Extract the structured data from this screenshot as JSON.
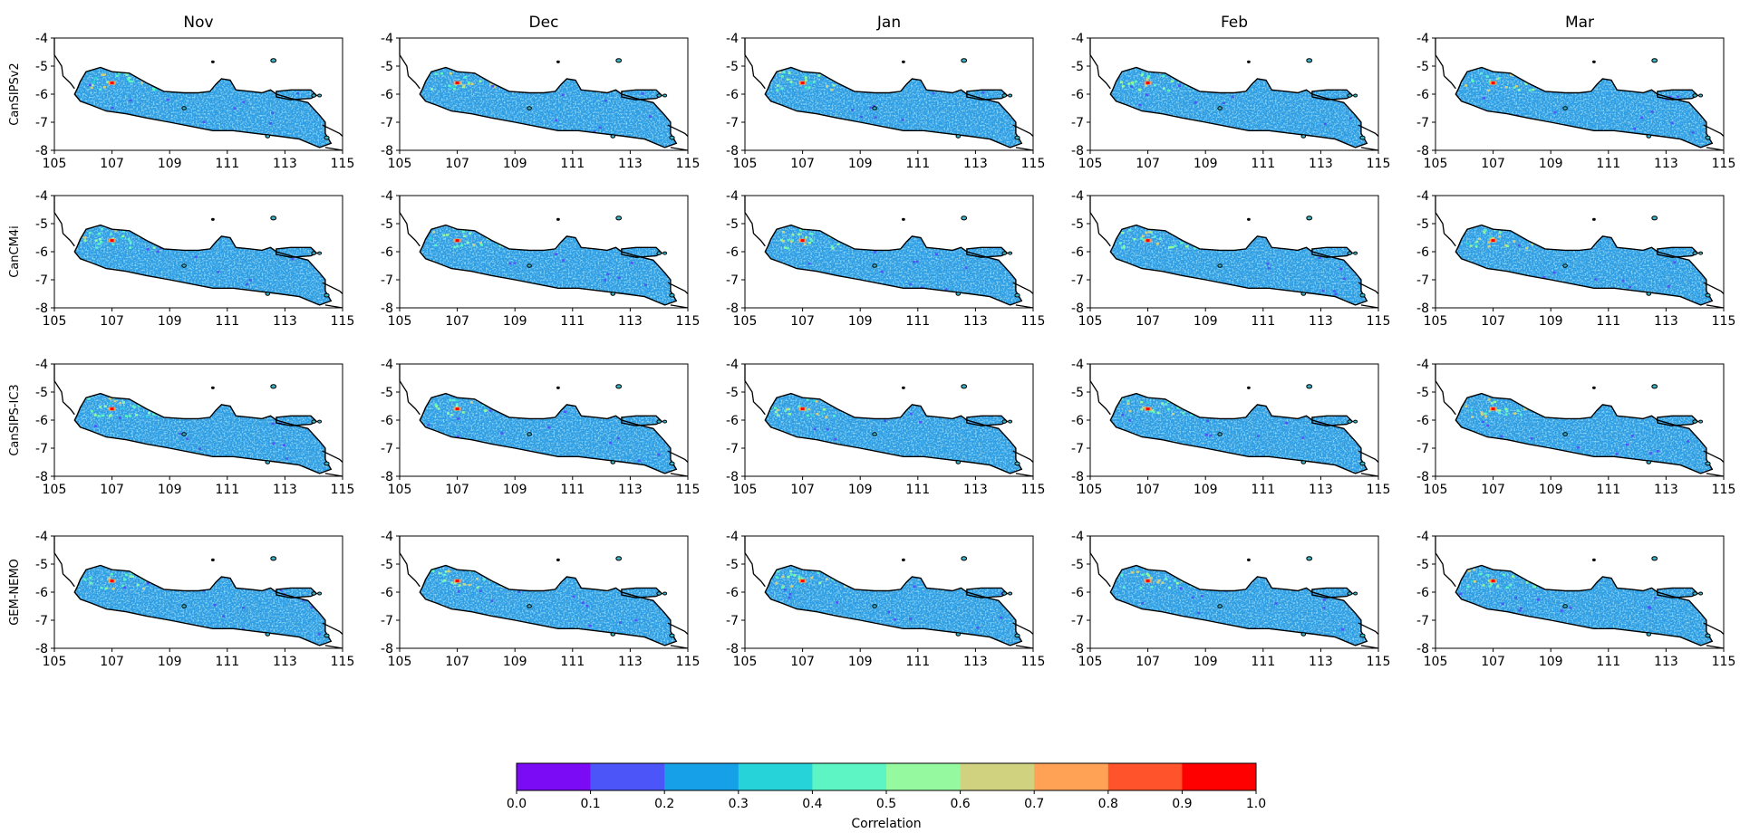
{
  "columns": [
    "Nov",
    "Dec",
    "Jan",
    "Feb",
    "Mar"
  ],
  "rows": [
    "CanSIPSv2",
    "CanCM4i",
    "CanSIPS-IC3",
    "GEM-NEMO"
  ],
  "x_ticks": [
    "105",
    "107",
    "109",
    "111",
    "113",
    "115"
  ],
  "y_ticks": [
    "-4",
    "-5",
    "-6",
    "-7",
    "-8"
  ],
  "x_range": [
    105,
    115
  ],
  "y_range": [
    -8,
    -4
  ],
  "colorbar": {
    "label": "Correlation",
    "ticks": [
      "0.0",
      "0.1",
      "0.2",
      "0.3",
      "0.4",
      "0.5",
      "0.6",
      "0.7",
      "0.8",
      "0.9",
      "1.0"
    ],
    "colors": [
      "#7b0af5",
      "#4c55f8",
      "#16a0e8",
      "#25d3d9",
      "#5cf5c3",
      "#95f99f",
      "#d1d280",
      "#ffa256",
      "#ff542b",
      "#ff0000"
    ]
  },
  "map": {
    "land_color": "#2f9ee4",
    "coast_color": "#000000",
    "hotspot_lon": 107.0,
    "hotspot_lat": -5.6
  }
}
